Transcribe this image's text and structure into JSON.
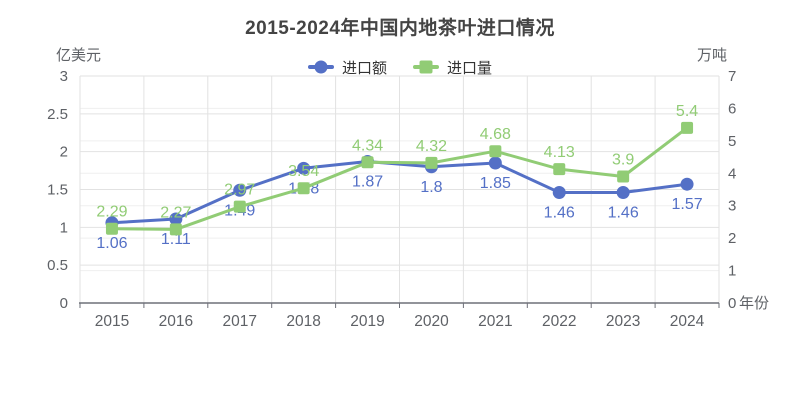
{
  "header": {
    "title": "2015-2024年中国内地茶叶进口情况"
  },
  "chart_data": {
    "type": "line",
    "title": "2015-2024年中国内地茶叶进口情况",
    "categories": [
      "2015",
      "2016",
      "2017",
      "2018",
      "2019",
      "2020",
      "2021",
      "2022",
      "2023",
      "2024"
    ],
    "series": [
      {
        "name": "进口额",
        "axis": "left",
        "color": "#5470C6",
        "marker": "circle",
        "label_position": "below",
        "values": [
          1.06,
          1.11,
          1.49,
          1.78,
          1.87,
          1.8,
          1.85,
          1.46,
          1.46,
          1.57
        ]
      },
      {
        "name": "进口量",
        "axis": "right",
        "color": "#91CC75",
        "marker": "square",
        "label_position": "above",
        "values": [
          2.29,
          2.27,
          2.97,
          3.54,
          4.34,
          4.32,
          4.68,
          4.13,
          3.9,
          5.4
        ]
      }
    ],
    "y_axis_left": {
      "name": "亿美元",
      "min": 0,
      "max": 3,
      "step": 0.5
    },
    "y_axis_right": {
      "name": "万吨",
      "min": 0,
      "max": 7,
      "step": 1
    },
    "x_axis": {
      "name": "年份"
    },
    "legend_position": "top-center",
    "grid": true,
    "colors": {
      "grid_major": "#e2e2e2",
      "grid_minor": "#efefef",
      "axis_line": "#6E7079",
      "axis_text": "#5E6166",
      "title_text": "#444444"
    }
  }
}
